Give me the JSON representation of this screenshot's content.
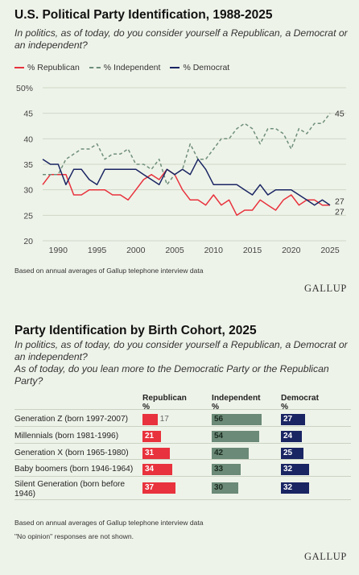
{
  "colors": {
    "republican": "#e8323d",
    "independent": "#6f8f7a",
    "democrat": "#1a2563",
    "grid": "#cfd7c8",
    "bar_independent": "#6b8a77"
  },
  "chart1": {
    "title": "U.S. Political Party Identification, 1988-2025",
    "subtitle": "In politics, as of today, do you consider yourself a Republican, a Democrat or an independent?",
    "note": "Based on annual averages of Gallup telephone interview data",
    "brand": "GALLUP",
    "end_labels": {
      "independent": "45",
      "democrat": "27",
      "republican": "27"
    }
  },
  "chart_data": [
    {
      "type": "line",
      "title": "U.S. Political Party Identification, 1988-2025",
      "x": [
        1988,
        1989,
        1990,
        1991,
        1992,
        1993,
        1994,
        1995,
        1996,
        1997,
        1998,
        1999,
        2000,
        2001,
        2002,
        2003,
        2004,
        2005,
        2006,
        2007,
        2008,
        2009,
        2010,
        2011,
        2012,
        2013,
        2014,
        2015,
        2016,
        2017,
        2018,
        2019,
        2020,
        2021,
        2022,
        2023,
        2024,
        2025
      ],
      "xticks": [
        "1990",
        "1995",
        "2000",
        "2005",
        "2010",
        "2015",
        "2020",
        "2025"
      ],
      "xtick_values": [
        1990,
        1995,
        2000,
        2005,
        2010,
        2015,
        2020,
        2025
      ],
      "yticks": [
        "20",
        "25",
        "30",
        "35",
        "40",
        "45",
        "50%"
      ],
      "ytick_values": [
        20,
        25,
        30,
        35,
        40,
        45,
        50
      ],
      "ylim": [
        20,
        50
      ],
      "xlim": [
        1988,
        2025
      ],
      "grid": true,
      "legend_position": "top-left",
      "series": [
        {
          "name": "% Republican",
          "key": "republican",
          "style": "solid",
          "values": [
            31,
            33,
            33,
            33,
            29,
            29,
            30,
            30,
            30,
            29,
            29,
            28,
            30,
            32,
            33,
            32,
            34,
            33,
            30,
            28,
            28,
            27,
            29,
            27,
            28,
            25,
            26,
            26,
            28,
            27,
            26,
            28,
            29,
            27,
            28,
            28,
            27,
            27
          ]
        },
        {
          "name": "% Independent",
          "key": "independent",
          "style": "dashed",
          "values": [
            33,
            33,
            33,
            36,
            37,
            38,
            38,
            39,
            36,
            37,
            37,
            38,
            35,
            35,
            34,
            36,
            31,
            33,
            34,
            39,
            36,
            36,
            38,
            40,
            40,
            42,
            43,
            42,
            39,
            42,
            42,
            41,
            38,
            42,
            41,
            43,
            43,
            45
          ]
        },
        {
          "name": "% Democrat",
          "key": "democrat",
          "style": "solid",
          "values": [
            36,
            35,
            35,
            31,
            34,
            34,
            32,
            31,
            34,
            34,
            34,
            34,
            34,
            33,
            32,
            31,
            34,
            33,
            34,
            33,
            36,
            34,
            31,
            31,
            31,
            31,
            30,
            29,
            31,
            29,
            30,
            30,
            30,
            29,
            28,
            27,
            28,
            27
          ]
        }
      ]
    },
    {
      "type": "bar",
      "title": "Party Identification by Birth Cohort, 2025",
      "categories": [
        "Generation Z (born 1997-2007)",
        "Millennials (born 1981-1996)",
        "Generation X (born 1965-1980)",
        "Baby boomers (born 1946-1964)",
        "Silent Generation (born before 1946)"
      ],
      "series": [
        {
          "name": "Republican %",
          "key": "republican",
          "values": [
            17,
            21,
            31,
            34,
            37
          ]
        },
        {
          "name": "Independent %",
          "key": "independent",
          "values": [
            56,
            54,
            42,
            33,
            30
          ]
        },
        {
          "name": "Democrat %",
          "key": "democrat",
          "values": [
            27,
            24,
            25,
            32,
            32
          ]
        }
      ]
    }
  ],
  "chart2": {
    "title": "Party Identification by Birth Cohort, 2025",
    "subtitle1": "In politics, as of today, do you consider yourself a Republican, a Democrat or an independent?",
    "subtitle2": "As of today, do you lean more to the Democratic Party or the Republican Party?",
    "headers": {
      "republican": [
        "Republican",
        "%"
      ],
      "independent": [
        "Independent",
        "%"
      ],
      "democrat": [
        "Democrat",
        "%"
      ]
    },
    "label_lines": [
      [
        "Generation Z (born 1997-2007)"
      ],
      [
        "Millennials (born 1981-1996)"
      ],
      [
        "Generation X (born 1965-1980)"
      ],
      [
        "Baby boomers (born 1946-1964)"
      ],
      [
        "Silent Generation (born before",
        "1946)"
      ]
    ],
    "note1": "Based on annual averages of Gallup telephone interview data",
    "note2": "\"No opinion\" responses are not shown.",
    "brand": "GALLUP"
  }
}
